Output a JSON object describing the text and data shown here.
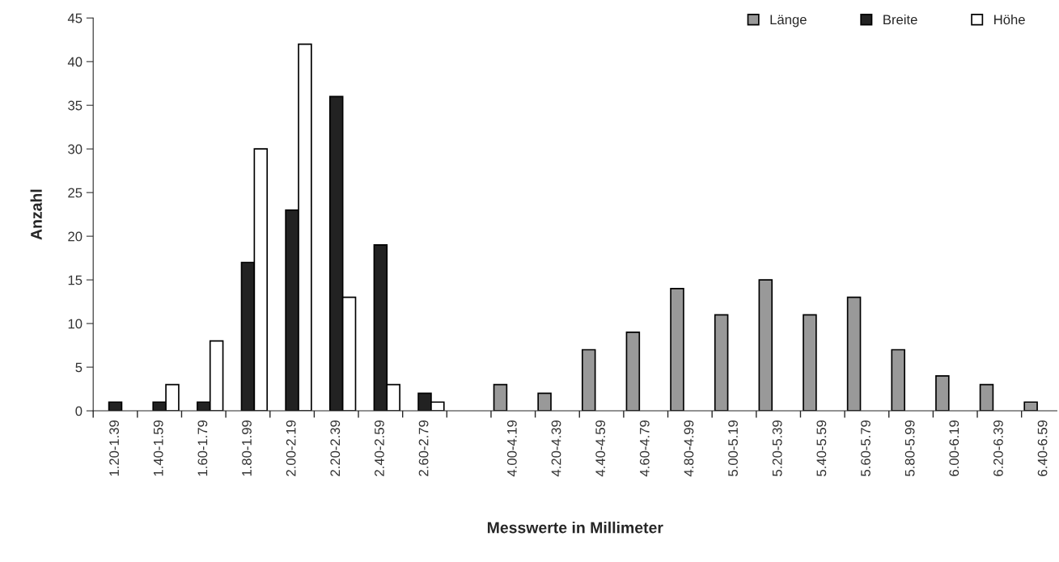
{
  "chart_data": {
    "type": "bar",
    "xlabel": "Messwerte in Millimeter",
    "ylabel": "Anzahl",
    "categories": [
      "1.20-1.39",
      "1.40-1.59",
      "1.60-1.79",
      "1.80-1.99",
      "2.00-2.19",
      "2.20-2.39",
      "2.40-2.59",
      "2.60-2.79",
      null,
      "4.00-4.19",
      "4.20-4.39",
      "4.40-4.59",
      "4.60-4.79",
      "4.80-4.99",
      "5.00-5.19",
      "5.20-5.39",
      "5.40-5.59",
      "5.60-5.79",
      "5.80-5.99",
      "6.00-6.19",
      "6.20-6.39",
      "6.40-6.59"
    ],
    "series": [
      {
        "name": "Länge",
        "color": "#999999",
        "values": [
          null,
          null,
          null,
          null,
          null,
          null,
          null,
          null,
          null,
          3,
          2,
          7,
          9,
          14,
          11,
          15,
          11,
          13,
          7,
          4,
          3,
          1
        ]
      },
      {
        "name": "Breite",
        "color": "#222222",
        "values": [
          1,
          1,
          1,
          17,
          23,
          36,
          19,
          2,
          null,
          null,
          null,
          null,
          null,
          null,
          null,
          null,
          null,
          null,
          null,
          null,
          null,
          null
        ]
      },
      {
        "name": "Höhe",
        "color": "#ffffff",
        "values": [
          null,
          3,
          8,
          30,
          42,
          13,
          3,
          1,
          null,
          null,
          null,
          null,
          null,
          null,
          null,
          null,
          null,
          null,
          null,
          null,
          null,
          null
        ]
      }
    ],
    "ylim": [
      0,
      45
    ],
    "yticks": [
      0,
      5,
      10,
      15,
      20,
      25,
      30,
      35,
      40,
      45
    ],
    "grid": false,
    "legend": "top right"
  }
}
